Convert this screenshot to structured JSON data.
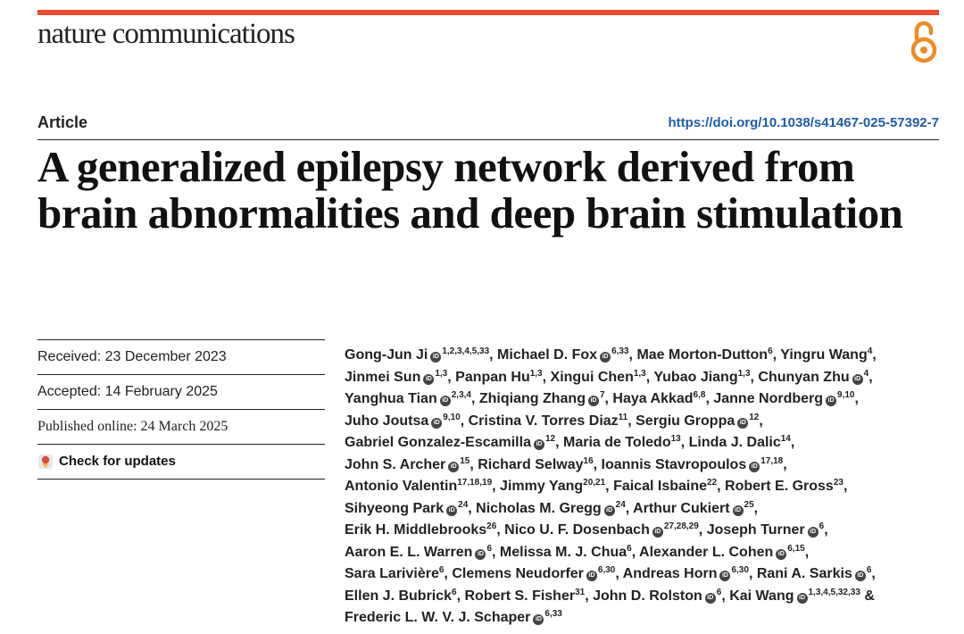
{
  "journal": "nature communications",
  "article_type": "Article",
  "doi": "https://doi.org/10.1038/s41467-025-57392-7",
  "title": "A generalized epilepsy network derived from brain abnormalities and deep brain stimulation",
  "meta": {
    "received": "Received: 23 December 2023",
    "accepted": "Accepted: 14 February 2025",
    "published": "Published online: 24 March 2025",
    "check_updates": "Check for updates"
  },
  "authors_text": [
    {
      "name": "Gong-Jun Ji",
      "orcid": true,
      "aff": "1,2,3,4,5,33",
      "sep": ", "
    },
    {
      "name": "Michael D. Fox",
      "orcid": true,
      "aff": "6,33",
      "sep": ", "
    },
    {
      "name": "Mae Morton-Dutton",
      "orcid": false,
      "aff": "6",
      "sep": ", "
    },
    {
      "name": "Yingru Wang",
      "orcid": false,
      "aff": "4",
      "sep": ", "
    },
    {
      "name": "Jinmei Sun",
      "orcid": true,
      "aff": "1,3",
      "sep": ", "
    },
    {
      "name": "Panpan Hu",
      "orcid": false,
      "aff": "1,3",
      "sep": ", "
    },
    {
      "name": "Xingui Chen",
      "orcid": false,
      "aff": "1,3",
      "sep": ", "
    },
    {
      "name": "Yubao Jiang",
      "orcid": false,
      "aff": "1,3",
      "sep": ", "
    },
    {
      "name": "Chunyan Zhu",
      "orcid": true,
      "aff": "4",
      "sep": ", "
    },
    {
      "name": "Yanghua Tian",
      "orcid": true,
      "aff": "2,3,4",
      "sep": ", "
    },
    {
      "name": "Zhiqiang Zhang",
      "orcid": true,
      "aff": "7",
      "sep": ", "
    },
    {
      "name": "Haya Akkad",
      "orcid": false,
      "aff": "6,8",
      "sep": ", "
    },
    {
      "name": "Janne Nordberg",
      "orcid": true,
      "aff": "9,10",
      "sep": ", "
    },
    {
      "name": "Juho Joutsa",
      "orcid": true,
      "aff": "9,10",
      "sep": ", "
    },
    {
      "name": "Cristina V. Torres Diaz",
      "orcid": false,
      "aff": "11",
      "sep": ", "
    },
    {
      "name": "Sergiu Groppa",
      "orcid": true,
      "aff": "12",
      "sep": ", "
    },
    {
      "name": "Gabriel Gonzalez-Escamilla",
      "orcid": true,
      "aff": "12",
      "sep": ", "
    },
    {
      "name": "Maria de Toledo",
      "orcid": false,
      "aff": "13",
      "sep": ", "
    },
    {
      "name": "Linda J. Dalic",
      "orcid": false,
      "aff": "14",
      "sep": ", "
    },
    {
      "name": "John S. Archer",
      "orcid": true,
      "aff": "15",
      "sep": ", "
    },
    {
      "name": "Richard Selway",
      "orcid": false,
      "aff": "16",
      "sep": ", "
    },
    {
      "name": "Ioannis Stavropoulos",
      "orcid": true,
      "aff": "17,18",
      "sep": ", "
    },
    {
      "name": "Antonio Valentin",
      "orcid": false,
      "aff": "17,18,19",
      "sep": ", "
    },
    {
      "name": "Jimmy Yang",
      "orcid": false,
      "aff": "20,21",
      "sep": ", "
    },
    {
      "name": "Faical Isbaine",
      "orcid": false,
      "aff": "22",
      "sep": ", "
    },
    {
      "name": "Robert E. Gross",
      "orcid": false,
      "aff": "23",
      "sep": ", "
    },
    {
      "name": "Sihyeong Park",
      "orcid": true,
      "aff": "24",
      "sep": ", "
    },
    {
      "name": "Nicholas M. Gregg",
      "orcid": true,
      "aff": "24",
      "sep": ", "
    },
    {
      "name": "Arthur Cukiert",
      "orcid": true,
      "aff": "25",
      "sep": ", "
    },
    {
      "name": "Erik H. Middlebrooks",
      "orcid": false,
      "aff": "26",
      "sep": ", "
    },
    {
      "name": "Nico U. F. Dosenbach",
      "orcid": true,
      "aff": "27,28,29",
      "sep": ", "
    },
    {
      "name": "Joseph Turner",
      "orcid": true,
      "aff": "6",
      "sep": ", "
    },
    {
      "name": "Aaron E. L. Warren",
      "orcid": true,
      "aff": "6",
      "sep": ", "
    },
    {
      "name": "Melissa M. J. Chua",
      "orcid": false,
      "aff": "6",
      "sep": ", "
    },
    {
      "name": "Alexander L. Cohen",
      "orcid": true,
      "aff": "6,15",
      "sep": ", "
    },
    {
      "name": "Sara Larivière",
      "orcid": false,
      "aff": "6",
      "sep": ", "
    },
    {
      "name": "Clemens Neudorfer",
      "orcid": true,
      "aff": "6,30",
      "sep": ", "
    },
    {
      "name": "Andreas Horn",
      "orcid": true,
      "aff": "6,30",
      "sep": ", "
    },
    {
      "name": "Rani A. Sarkis",
      "orcid": true,
      "aff": "6",
      "sep": ", "
    },
    {
      "name": "Ellen J. Bubrick",
      "orcid": false,
      "aff": "6",
      "sep": ", "
    },
    {
      "name": "Robert S. Fisher",
      "orcid": false,
      "aff": "31",
      "sep": ", "
    },
    {
      "name": "John D. Rolston",
      "orcid": true,
      "aff": "6",
      "sep": ", "
    },
    {
      "name": "Kai Wang",
      "orcid": true,
      "aff": "1,3,4,5,32,33",
      "sep": " & "
    },
    {
      "name": "Frederic L. W. V. J. Schaper",
      "orcid": true,
      "aff": "6,33",
      "sep": ""
    }
  ],
  "author_rows": [
    [
      0,
      1,
      2,
      3
    ],
    [
      4,
      5,
      6,
      7,
      8
    ],
    [
      9,
      10,
      11,
      12
    ],
    [
      13,
      14,
      15
    ],
    [
      16,
      17,
      18
    ],
    [
      19,
      20,
      21
    ],
    [
      22,
      23,
      24,
      25
    ],
    [
      26,
      27,
      28
    ],
    [
      29,
      30,
      31
    ],
    [
      32,
      33,
      34
    ],
    [
      35,
      36,
      37,
      38
    ],
    [
      39,
      40,
      41,
      42
    ],
    [
      43
    ]
  ],
  "colors": {
    "accent_bar": "#ea4b33",
    "doi_link": "#1f5ca8",
    "open_access_icon": "#f08a24"
  },
  "icons": [
    "open-access-icon",
    "check-for-updates-icon",
    "orcid-icon"
  ]
}
